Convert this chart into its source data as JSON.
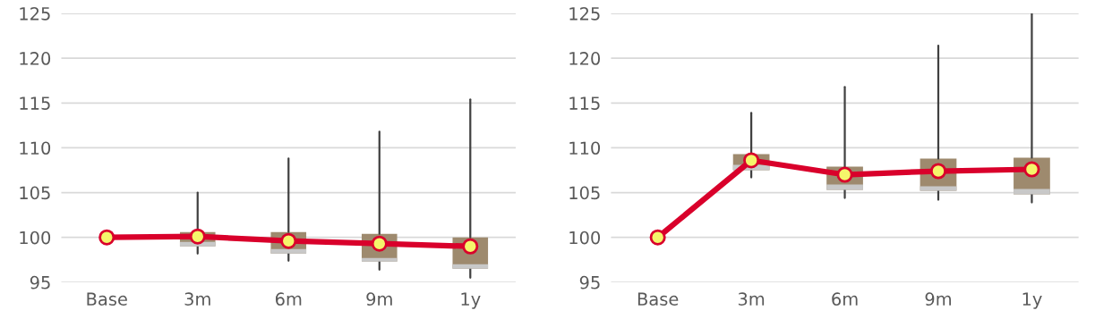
{
  "chart_data": [
    {
      "type": "box",
      "categories": [
        "Base",
        "3m",
        "6m",
        "9m",
        "1y"
      ],
      "ylim": [
        95,
        125
      ],
      "yticks": [
        95,
        100,
        105,
        110,
        115,
        120,
        125
      ],
      "grid": "y",
      "marker": "circle",
      "series": [
        {
          "type": "box",
          "color": "#9e8a6e",
          "boxes": [
            null,
            {
              "low": 98.2,
              "q1": 99.0,
              "median": 99.5,
              "q3": 100.6,
              "high": 105.0
            },
            {
              "low": 97.4,
              "q1": 98.2,
              "median": 98.7,
              "q3": 100.6,
              "high": 108.8
            },
            {
              "low": 96.4,
              "q1": 97.3,
              "median": 97.7,
              "q3": 100.4,
              "high": 111.8
            },
            {
              "low": 95.5,
              "q1": 96.5,
              "median": 97.0,
              "q3": 100.0,
              "high": 115.4
            }
          ]
        },
        {
          "type": "line",
          "color": "#d9002b",
          "values": [
            100,
            100.1,
            99.6,
            99.3,
            99.0
          ]
        }
      ]
    },
    {
      "type": "box",
      "categories": [
        "Base",
        "3m",
        "6m",
        "9m",
        "1y"
      ],
      "ylim": [
        95,
        125
      ],
      "yticks": [
        95,
        100,
        105,
        110,
        115,
        120,
        125
      ],
      "grid": "y",
      "marker": "circle",
      "series": [
        {
          "type": "box",
          "color": "#9e8a6e",
          "boxes": [
            null,
            {
              "low": 106.7,
              "q1": 107.5,
              "median": 108.1,
              "q3": 109.3,
              "high": 113.9
            },
            {
              "low": 104.4,
              "q1": 105.3,
              "median": 105.9,
              "q3": 107.9,
              "high": 116.8
            },
            {
              "low": 104.2,
              "q1": 105.2,
              "median": 105.7,
              "q3": 108.8,
              "high": 121.4
            },
            {
              "low": 103.9,
              "q1": 104.8,
              "median": 105.4,
              "q3": 108.9,
              "high": 125.0
            }
          ]
        },
        {
          "type": "line",
          "color": "#d9002b",
          "values": [
            100,
            108.6,
            107.0,
            107.4,
            107.6
          ]
        }
      ]
    }
  ]
}
